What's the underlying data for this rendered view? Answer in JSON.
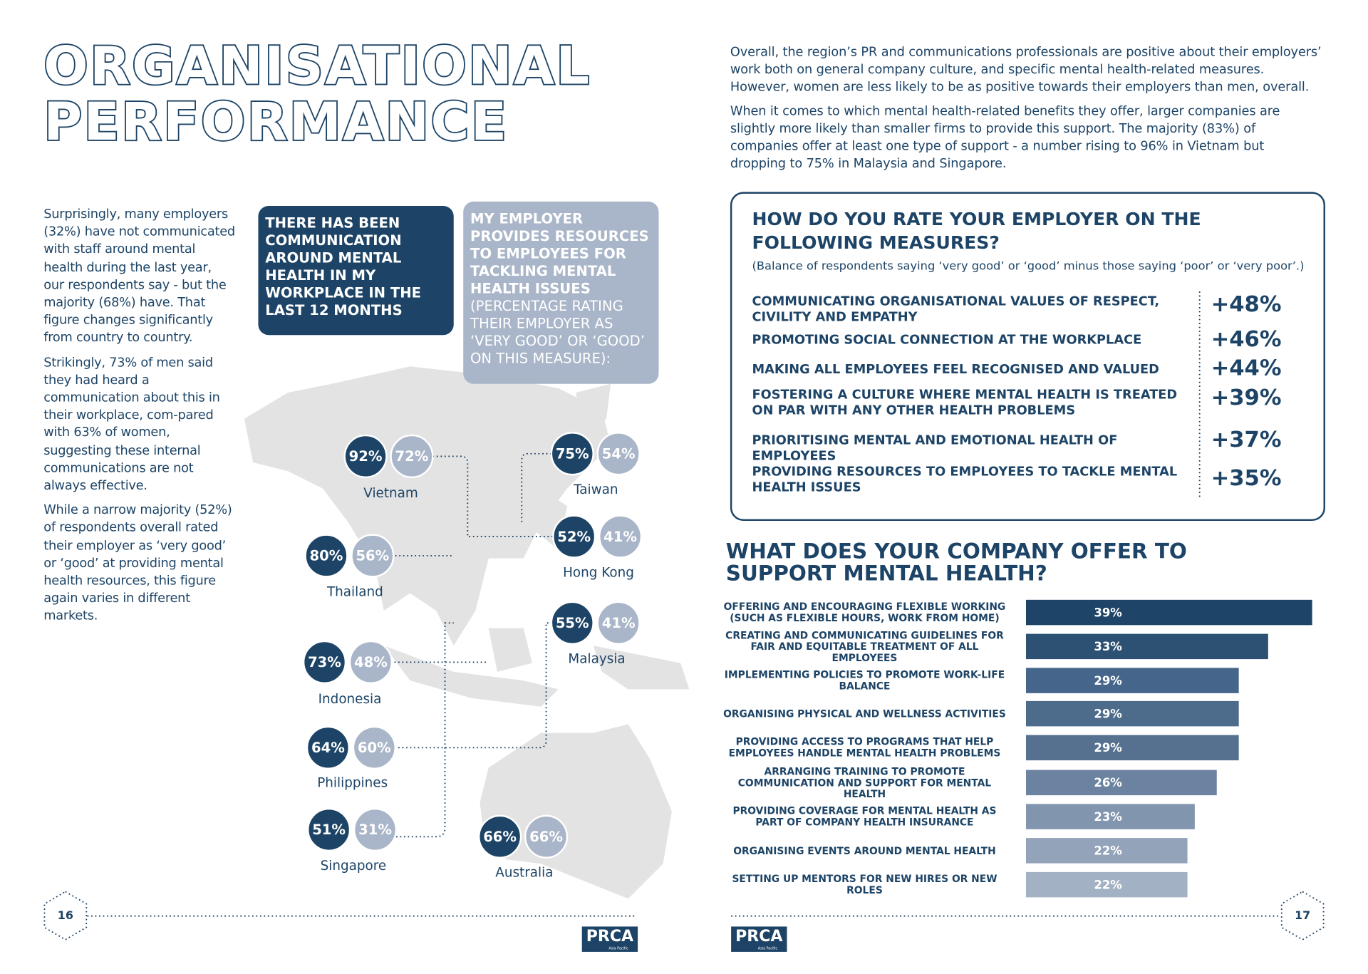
{
  "page_left": {
    "title": [
      "ORGANISATIONAL",
      "PERFORMANCE"
    ],
    "paragraphs": [
      "Surprisingly, many employers (32%) have not communicated with staff around mental health during the last year, our respondents say - but the majority (68%) have. That figure changes significantly from country to country.",
      "Strikingly, 73% of men said they had heard a communication about this in their workplace, com-pared with 63% of women, suggesting these internal communications are not always effective.",
      "While a narrow majority (52%) of respondents overall rated their employer as ‘very good’ or ‘good’ at providing mental health resources, this figure again varies in different markets."
    ],
    "box_communication": "THERE HAS BEEN COMMUNICATION AROUND MENTAL HEALTH IN MY WORKPLACE IN THE LAST 12 MONTHS",
    "box_resources": {
      "heading": "MY EMPLOYER PROVIDES RESOURCES TO EMPLOYEES FOR TACKLING MENTAL HEALTH ISSUES",
      "note": "(PERCENTAGE RATING THEIR EMPLOYER AS ‘VERY GOOD’ OR ‘GOOD’ ON THIS MEASURE):"
    },
    "countries": [
      {
        "name": "Vietnam",
        "communication": "92%",
        "resources": "72%"
      },
      {
        "name": "Taiwan",
        "communication": "75%",
        "resources": "54%"
      },
      {
        "name": "Hong Kong",
        "communication": "52%",
        "resources": "41%"
      },
      {
        "name": "Thailand",
        "communication": "80%",
        "resources": "56%"
      },
      {
        "name": "Malaysia",
        "communication": "55%",
        "resources": "41%"
      },
      {
        "name": "Indonesia",
        "communication": "73%",
        "resources": "48%"
      },
      {
        "name": "Philippines",
        "communication": "64%",
        "resources": "60%"
      },
      {
        "name": "Singapore",
        "communication": "51%",
        "resources": "31%"
      },
      {
        "name": "Australia",
        "communication": "66%",
        "resources": "66%"
      }
    ],
    "page_number": "16",
    "logo": "PRCA",
    "logo_sub": "Asia Pacific"
  },
  "page_right": {
    "intro": [
      "Overall, the region’s PR and communications professionals are positive about their employers’ work both on general company culture, and specific mental health-related measures. However, women are less likely to be as positive towards their employers than men, overall.",
      "When it comes to which mental health-related benefits they offer, larger companies are slightly more likely than smaller firms to provide this support. The majority (83%) of companies offer at least one type of support - a number rising to 96% in Vietnam but dropping to 75% in Malaysia and Singapore."
    ],
    "measures": {
      "title": "HOW DO YOU RATE YOUR EMPLOYER ON THE FOLLOWING MEASURES?",
      "note": "(Balance of respondents saying ‘very good’ or ‘good’ minus those saying ‘poor’ or ‘very poor’.)",
      "rows": [
        {
          "label": "COMMUNICATING ORGANISATIONAL VALUES OF RESPECT, CIVILITY AND EMPATHY",
          "score": "+48%"
        },
        {
          "label": "PROMOTING SOCIAL CONNECTION AT THE WORKPLACE",
          "score": "+46%"
        },
        {
          "label": "MAKING ALL EMPLOYEES FEEL RECOGNISED AND VALUED",
          "score": "+44%"
        },
        {
          "label": "FOSTERING A CULTURE WHERE MENTAL HEALTH IS TREATED ON PAR WITH ANY OTHER HEALTH PROBLEMS",
          "score": "+39%"
        },
        {
          "label": "PRIORITISING MENTAL AND EMOTIONAL HEALTH OF EMPLOYEES",
          "score": "+37%"
        },
        {
          "label": "PROVIDING RESOURCES TO EMPLOYEES TO TACKLE MENTAL HEALTH ISSUES",
          "score": "+35%"
        }
      ]
    },
    "support_chart": {
      "type": "bar",
      "title": "WHAT DOES YOUR COMPANY OFFER TO SUPPORT MENTAL HEALTH?",
      "categories": [
        "OFFERING AND ENCOURAGING FLEXIBLE WORKING (SUCH AS FLEXIBLE HOURS, WORK FROM HOME)",
        "CREATING AND COMMUNICATING GUIDELINES FOR FAIR AND EQUITABLE TREATMENT OF ALL EMPLOYEES",
        "IMPLEMENTING POLICIES TO PROMOTE WORK-LIFE BALANCE",
        "ORGANISING PHYSICAL AND WELLNESS ACTIVITIES",
        "PROVIDING ACCESS TO PROGRAMS THAT HELP EMPLOYEES HANDLE MENTAL HEALTH PROBLEMS",
        "ARRANGING TRAINING TO PROMOTE COMMUNICATION AND SUPPORT FOR MENTAL HEALTH",
        "PROVIDING COVERAGE FOR MENTAL HEALTH AS PART OF COMPANY HEALTH INSURANCE",
        "ORGANISING EVENTS AROUND MENTAL HEALTH",
        "SETTING UP MENTORS FOR NEW HIRES OR NEW ROLES"
      ],
      "values": [
        39,
        33,
        29,
        29,
        29,
        26,
        23,
        22,
        22
      ],
      "value_labels": [
        "39%",
        "33%",
        "29%",
        "29%",
        "29%",
        "26%",
        "23%",
        "22%",
        "22%"
      ],
      "colors": [
        "#1e4467",
        "#2c5173",
        "#46658a",
        "#4d6b8b",
        "#55718f",
        "#6b83a0",
        "#8295ae",
        "#93a3b9",
        "#a3b1c4"
      ]
    },
    "page_number": "17",
    "logo": "PRCA",
    "logo_sub": "Asia Pacific"
  }
}
